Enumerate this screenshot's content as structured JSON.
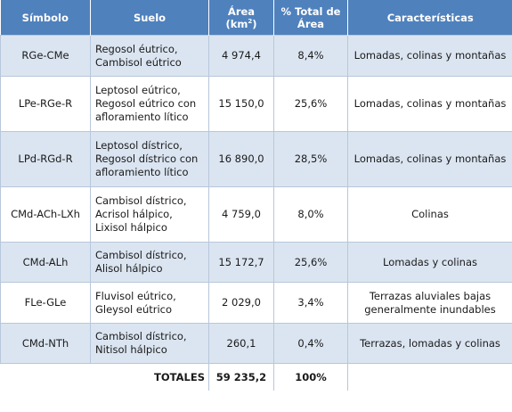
{
  "headers": {
    "simbolo": "Símbolo",
    "suelo": "Suelo",
    "area": "Área (km",
    "area_sup": "2",
    "area_close": ")",
    "pct": "% Total de\nÁrea",
    "car": "Características"
  },
  "rows": [
    {
      "simbolo": "RGe-CMe",
      "suelo": "Regosol éutrico,\nCambisol eútrico",
      "area": "4 974,4",
      "pct": "8,4%",
      "car": "Lomadas, colinas y montañas"
    },
    {
      "simbolo": "LPe-RGe-R",
      "suelo": "Leptosol eútrico,\nRegosol eútrico con\nafloramiento lítico",
      "area": "15 150,0",
      "pct": "25,6%",
      "car": "Lomadas, colinas y montañas"
    },
    {
      "simbolo": "LPd-RGd-R",
      "suelo": "Leptosol dístrico,\nRegosol dístrico con\nafloramiento lítico",
      "area": "16 890,0",
      "pct": "28,5%",
      "car": "Lomadas, colinas y montañas"
    },
    {
      "simbolo": "CMd-ACh-LXh",
      "suelo": "Cambisol dístrico,\nAcrisol hálpico,\nLixisol hálpico",
      "area": "4 759,0",
      "pct": "8,0%",
      "car": "Colinas"
    },
    {
      "simbolo": "CMd-ALh",
      "suelo": "Cambisol dístrico,\nAlisol hálpico",
      "area": "15 172,7",
      "pct": "25,6%",
      "car": "Lomadas y colinas"
    },
    {
      "simbolo": "FLe-GLe",
      "suelo": "Fluvisol eútrico,\nGleysol eútrico",
      "area": "2 029,0",
      "pct": "3,4%",
      "car": "Terrazas aluviales bajas\ngeneralmente inundables"
    },
    {
      "simbolo": "CMd-NTh",
      "suelo": "Cambisol dístrico,\nNitisol hálpico",
      "area": "260,1",
      "pct": "0,4%",
      "car": "Terrazas, lomadas y colinas"
    }
  ],
  "totals": {
    "label": "TOTALES",
    "area": "59 235,2",
    "pct": "100%"
  }
}
